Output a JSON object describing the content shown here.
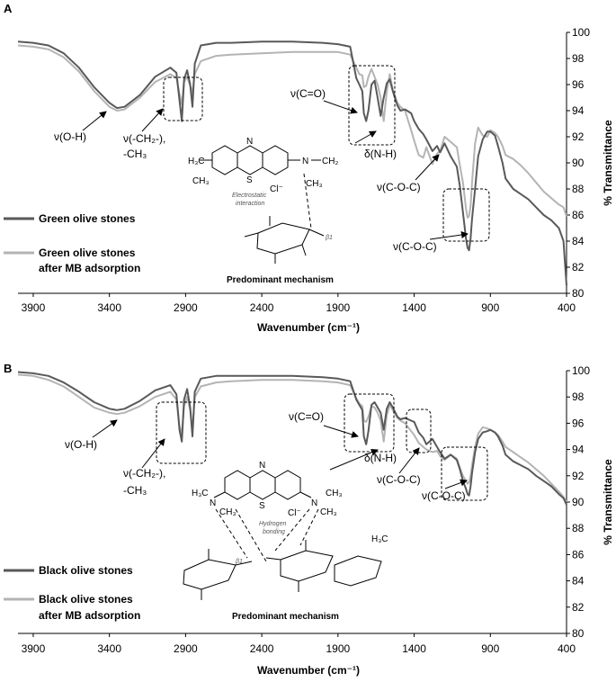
{
  "chart_data": [
    {
      "panel_label": "A",
      "type": "line",
      "xlabel": "Wavenumber (cm⁻¹)",
      "ylabel": "% Transmittance",
      "xlim": [
        4000,
        400
      ],
      "x_reversed": true,
      "xticks": [
        3900,
        3400,
        2900,
        2400,
        1900,
        1400,
        900,
        400
      ],
      "ylim": [
        80,
        100
      ],
      "yticks": [
        80,
        82,
        84,
        86,
        88,
        90,
        92,
        94,
        96,
        98,
        100
      ],
      "grid": false,
      "legend_position": "bottom-left",
      "series": [
        {
          "name": "Green olive stones",
          "color": "#595959",
          "x": [
            4000,
            3900,
            3800,
            3700,
            3600,
            3500,
            3400,
            3350,
            3300,
            3200,
            3100,
            3000,
            2960,
            2940,
            2925,
            2910,
            2890,
            2870,
            2855,
            2840,
            2800,
            2700,
            2600,
            2400,
            2200,
            2000,
            1900,
            1820,
            1780,
            1760,
            1740,
            1730,
            1715,
            1700,
            1680,
            1660,
            1640,
            1620,
            1600,
            1580,
            1560,
            1540,
            1510,
            1490,
            1460,
            1420,
            1400,
            1370,
            1340,
            1320,
            1280,
            1250,
            1230,
            1200,
            1160,
            1120,
            1100,
            1080,
            1060,
            1050,
            1040,
            1030,
            1020,
            1000,
            980,
            950,
            920,
            900,
            870,
            850,
            820,
            800,
            750,
            700,
            650,
            600,
            550,
            500,
            450,
            420,
            400
          ],
          "y": [
            99.3,
            99.2,
            99.0,
            98.4,
            97.3,
            95.8,
            94.6,
            94.2,
            94.3,
            95.2,
            96.6,
            97.3,
            96.9,
            94.8,
            93.2,
            96.4,
            97.1,
            96.0,
            94.3,
            97.6,
            99.0,
            99.2,
            99.2,
            99.3,
            99.3,
            99.2,
            99.1,
            98.9,
            96.5,
            96.0,
            95.5,
            93.8,
            93.2,
            94.0,
            96.0,
            96.3,
            95.0,
            93.6,
            95.0,
            96.1,
            96.4,
            95.5,
            94.4,
            94.0,
            94.1,
            93.8,
            93.2,
            92.6,
            92.2,
            91.8,
            90.9,
            91.3,
            90.8,
            91.5,
            90.5,
            89.7,
            88.2,
            86.2,
            84.2,
            83.5,
            83.3,
            84.2,
            85.7,
            88.0,
            90.5,
            91.8,
            92.4,
            92.4,
            92.1,
            91.3,
            90.0,
            88.8,
            88.0,
            87.6,
            87.2,
            86.6,
            86.0,
            85.6,
            85.0,
            84.0,
            80.6
          ]
        },
        {
          "name": "Green olive stones after MB adsorption",
          "color": "#b4b4b4",
          "x": [
            4000,
            3900,
            3800,
            3700,
            3600,
            3500,
            3400,
            3350,
            3300,
            3200,
            3100,
            3000,
            2960,
            2940,
            2925,
            2910,
            2890,
            2870,
            2855,
            2840,
            2800,
            2700,
            2600,
            2400,
            2200,
            2000,
            1900,
            1820,
            1780,
            1760,
            1740,
            1730,
            1715,
            1700,
            1680,
            1660,
            1640,
            1620,
            1600,
            1580,
            1560,
            1540,
            1510,
            1490,
            1460,
            1420,
            1400,
            1370,
            1340,
            1320,
            1280,
            1250,
            1230,
            1200,
            1160,
            1120,
            1100,
            1080,
            1060,
            1050,
            1040,
            1030,
            1020,
            1000,
            980,
            950,
            920,
            900,
            870,
            850,
            820,
            800,
            750,
            700,
            650,
            600,
            550,
            500,
            450,
            420,
            400
          ],
          "y": [
            99.0,
            98.9,
            98.7,
            98.1,
            97.0,
            95.5,
            94.3,
            94.0,
            94.1,
            95.0,
            96.2,
            96.8,
            96.5,
            95.3,
            94.5,
            96.2,
            96.6,
            95.9,
            95.4,
            96.8,
            97.8,
            98.2,
            98.3,
            98.4,
            98.5,
            98.5,
            98.5,
            98.3,
            97.3,
            96.8,
            96.7,
            95.8,
            95.9,
            96.6,
            97.2,
            96.6,
            96.0,
            95.0,
            93.2,
            95.5,
            96.8,
            95.6,
            94.6,
            94.3,
            94.0,
            92.5,
            91.7,
            90.6,
            90.4,
            91.2,
            89.9,
            90.7,
            90.9,
            92.0,
            91.6,
            91.2,
            89.8,
            88.5,
            86.5,
            85.8,
            85.9,
            86.7,
            88.5,
            91.5,
            92.7,
            92.1,
            92.0,
            92.5,
            92.3,
            92.0,
            91.3,
            90.6,
            90.3,
            89.8,
            89.2,
            88.5,
            87.8,
            87.3,
            86.8,
            86.6,
            85.9
          ]
        }
      ],
      "annotations": [
        "ν(O-H)",
        "ν(-CH₂-),",
        "-CH₃",
        "ν(C=O)",
        "δ(N-H)",
        "ν(C-O-C)",
        "ν(C-O-C)"
      ],
      "inset": {
        "mechanism_label": "Predominant mechanism",
        "interaction_label_1": "Electrostatic",
        "interaction_label_2": "interaction",
        "counter_ion": "Cl⁻",
        "atom_n": "N",
        "atom_s": "S",
        "group_h3c": "H₃C",
        "group_ch3": "CH₃",
        "group_nplus": "N",
        "group_ch2": "CH₂",
        "sugar_beta": "β1"
      }
    },
    {
      "panel_label": "B",
      "type": "line",
      "xlabel": "Wavenumber (cm⁻¹)",
      "ylabel": "% Transmittance",
      "xlim": [
        4000,
        400
      ],
      "x_reversed": true,
      "xticks": [
        3900,
        3400,
        2900,
        2400,
        1900,
        1400,
        900,
        400
      ],
      "ylim": [
        80,
        100
      ],
      "yticks": [
        80,
        82,
        84,
        86,
        88,
        90,
        92,
        94,
        96,
        98,
        100
      ],
      "grid": false,
      "legend_position": "bottom-left",
      "series": [
        {
          "name": "Black olive stones",
          "color": "#595959",
          "x": [
            4000,
            3900,
            3800,
            3700,
            3600,
            3500,
            3400,
            3350,
            3300,
            3200,
            3100,
            3000,
            2960,
            2940,
            2925,
            2910,
            2890,
            2870,
            2855,
            2840,
            2800,
            2700,
            2600,
            2400,
            2200,
            2000,
            1900,
            1820,
            1780,
            1760,
            1740,
            1730,
            1715,
            1700,
            1680,
            1660,
            1640,
            1620,
            1600,
            1580,
            1560,
            1540,
            1510,
            1490,
            1460,
            1420,
            1400,
            1370,
            1340,
            1320,
            1280,
            1250,
            1230,
            1200,
            1160,
            1120,
            1100,
            1080,
            1060,
            1050,
            1040,
            1030,
            1020,
            1000,
            980,
            950,
            920,
            900,
            870,
            850,
            820,
            800,
            750,
            700,
            650,
            600,
            550,
            500,
            450,
            420,
            400
          ],
          "y": [
            99.9,
            99.8,
            99.6,
            99.1,
            98.4,
            97.6,
            97.1,
            97.0,
            97.1,
            97.7,
            98.5,
            98.9,
            98.2,
            95.5,
            94.6,
            97.8,
            98.6,
            97.2,
            95.0,
            98.4,
            99.4,
            99.6,
            99.6,
            99.6,
            99.6,
            99.5,
            99.4,
            99.2,
            97.8,
            97.4,
            97.0,
            95.0,
            94.4,
            95.4,
            97.4,
            97.6,
            97.2,
            96.8,
            95.5,
            97.1,
            97.6,
            97.2,
            96.5,
            96.3,
            96.4,
            96.2,
            96.1,
            95.3,
            94.9,
            94.4,
            94.8,
            94.2,
            93.8,
            93.3,
            93.6,
            93.2,
            92.5,
            91.6,
            91.0,
            90.6,
            90.5,
            91.2,
            92.2,
            93.8,
            94.8,
            95.3,
            95.4,
            95.5,
            95.3,
            95.0,
            94.3,
            93.6,
            93.1,
            92.8,
            92.5,
            92.0,
            91.6,
            91.2,
            90.6,
            90.3,
            89.8
          ]
        },
        {
          "name": "Black olive stones after MB adsorption",
          "color": "#b4b4b4",
          "x": [
            4000,
            3900,
            3800,
            3700,
            3600,
            3500,
            3400,
            3350,
            3300,
            3200,
            3100,
            3000,
            2960,
            2940,
            2925,
            2910,
            2890,
            2870,
            2855,
            2840,
            2800,
            2700,
            2600,
            2400,
            2200,
            2000,
            1900,
            1820,
            1780,
            1760,
            1740,
            1730,
            1715,
            1700,
            1680,
            1660,
            1640,
            1620,
            1600,
            1580,
            1560,
            1540,
            1510,
            1490,
            1460,
            1420,
            1400,
            1370,
            1340,
            1320,
            1280,
            1250,
            1230,
            1200,
            1160,
            1120,
            1100,
            1080,
            1060,
            1050,
            1040,
            1030,
            1020,
            1000,
            980,
            950,
            920,
            900,
            870,
            850,
            820,
            800,
            750,
            700,
            650,
            600,
            550,
            500,
            450,
            420,
            400
          ],
          "y": [
            99.7,
            99.6,
            99.3,
            98.8,
            98.0,
            97.2,
            96.8,
            96.7,
            96.8,
            97.3,
            98.0,
            98.4,
            97.8,
            95.8,
            95.2,
            97.3,
            98.0,
            97.0,
            95.6,
            98.0,
            98.8,
            99.1,
            99.2,
            99.3,
            99.3,
            99.2,
            99.1,
            98.9,
            97.9,
            97.5,
            97.3,
            96.2,
            96.1,
            96.5,
            97.3,
            97.2,
            96.8,
            96.2,
            94.6,
            96.6,
            97.4,
            97.0,
            96.4,
            96.2,
            96.0,
            95.4,
            95.1,
            94.5,
            94.2,
            94.0,
            93.8,
            93.9,
            93.5,
            93.2,
            93.6,
            93.3,
            92.6,
            92.0,
            91.6,
            91.4,
            91.5,
            92.0,
            92.8,
            94.2,
            95.2,
            95.7,
            95.6,
            95.5,
            95.3,
            95.1,
            94.6,
            94.2,
            93.8,
            93.4,
            93.0,
            92.5,
            92.0,
            91.4,
            90.8,
            90.4,
            90.0
          ]
        }
      ],
      "annotations": [
        "ν(O-H)",
        "ν(-CH₂-),",
        "-CH₃",
        "ν(C=O)",
        "δ(N-H)",
        "ν(C-O-C)",
        "ν(C-O-C)"
      ],
      "inset": {
        "mechanism_label": "Predominant mechanism",
        "interaction_label_1": "Hydrogen",
        "interaction_label_2": "bonding",
        "counter_ion": "Cl⁻",
        "atom_n": "N",
        "atom_s": "S",
        "group_h3c": "H₃C",
        "group_ch3": "CH₃",
        "group_ch3_b": "CH₃",
        "group_n1": "N",
        "group_n2": "N",
        "group_h3c_right": "H₃C",
        "sugar_beta": "β1"
      }
    }
  ]
}
